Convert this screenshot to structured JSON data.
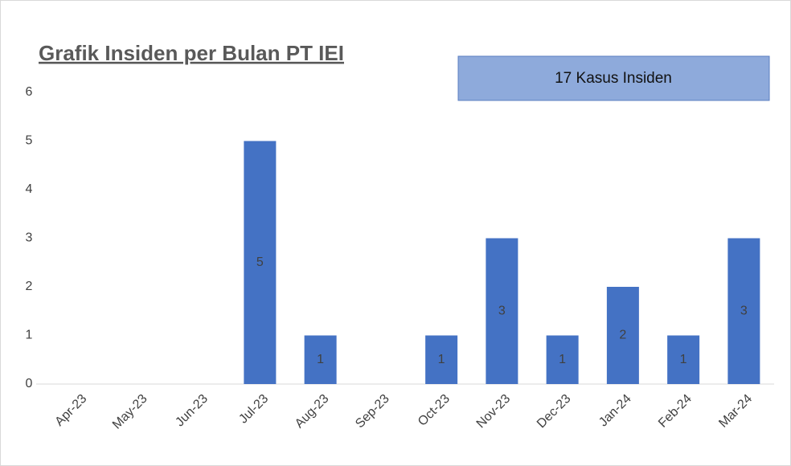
{
  "chart_data": {
    "type": "bar",
    "title": "Grafik Insiden per Bulan PT IEI",
    "annotation": "17 Kasus Insiden",
    "categories": [
      "Apr-23",
      "May-23",
      "Jun-23",
      "Jul-23",
      "Aug-23",
      "Sep-23",
      "Oct-23",
      "Nov-23",
      "Dec-23",
      "Jan-24",
      "Feb-24",
      "Mar-24"
    ],
    "values": [
      0,
      0,
      0,
      5,
      1,
      0,
      1,
      3,
      1,
      2,
      1,
      3
    ],
    "color": "#4472c4",
    "ylim": [
      0,
      6
    ],
    "yticks": [
      0,
      1,
      2,
      3,
      4,
      5,
      6
    ],
    "grid": false
  }
}
